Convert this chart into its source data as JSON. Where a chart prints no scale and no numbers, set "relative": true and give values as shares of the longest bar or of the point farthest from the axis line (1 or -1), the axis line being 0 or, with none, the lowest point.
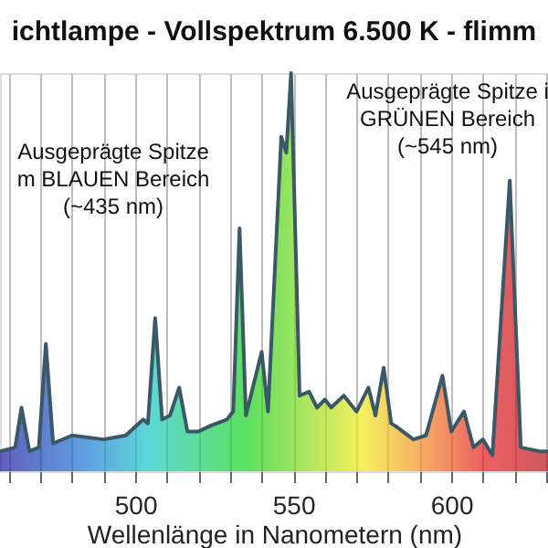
{
  "chart_data": {
    "type": "area",
    "title": "ichtlampe - Vollspektrum 6.500 K - flimm",
    "xlabel": "Wellenlänge in Nanometern (nm)",
    "relative": true,
    "x": [
      457.2,
      462,
      464,
      466.5,
      469.5,
      471.7,
      474,
      480,
      490,
      497,
      502.5,
      504,
      506.3,
      508.5,
      511,
      513.9,
      516.5,
      520,
      524,
      529,
      531,
      533,
      535,
      540,
      542,
      546.2,
      547.8,
      549.3,
      552,
      555,
      557.5,
      560,
      562,
      566,
      570,
      573.8,
      576,
      578.6,
      581,
      583,
      588,
      592,
      597.2,
      600,
      604,
      607,
      610,
      613,
      618.5,
      622,
      628,
      630.6
    ],
    "series": [
      {
        "color": "#3b5866",
        "values": [
          0.05,
          0.06,
          0.16,
          0.05,
          0.06,
          0.32,
          0.07,
          0.09,
          0.08,
          0.09,
          0.13,
          0.12,
          0.385,
          0.13,
          0.14,
          0.21,
          0.1,
          0.1,
          0.115,
          0.13,
          0.15,
          0.61,
          0.14,
          0.3,
          0.15,
          0.84,
          0.8,
          1.0,
          0.19,
          0.2,
          0.16,
          0.18,
          0.16,
          0.19,
          0.15,
          0.21,
          0.14,
          0.26,
          0.12,
          0.11,
          0.08,
          0.09,
          0.24,
          0.1,
          0.15,
          0.06,
          0.08,
          0.04,
          0.73,
          0.06,
          0.05,
          0.05
        ]
      }
    ],
    "xlim": [
      457.2,
      630.6
    ],
    "xticks": [
      {
        "value": 460,
        "label": null
      },
      {
        "value": 470,
        "label": null
      },
      {
        "value": 480,
        "label": null
      },
      {
        "value": 490,
        "label": null
      },
      500,
      {
        "value": 510,
        "label": null
      },
      {
        "value": 520,
        "label": null
      },
      {
        "value": 530,
        "label": null
      },
      {
        "value": 540,
        "label": null
      },
      550,
      {
        "value": 560,
        "label": null
      },
      {
        "value": 570,
        "label": null
      },
      {
        "value": 580,
        "label": null
      },
      {
        "value": 590,
        "label": null
      },
      600,
      {
        "value": 610,
        "label": null
      },
      {
        "value": 620,
        "label": null
      },
      {
        "value": 630,
        "label": null
      }
    ],
    "grid": "x",
    "annotations": [
      "Ausgeprägte Spitze\nm BLAUEN Bereich\n(~435 nm)",
      "Ausgeprägte Spitze i\nGRÜNEN Bereich\n(~545 nm)"
    ]
  }
}
